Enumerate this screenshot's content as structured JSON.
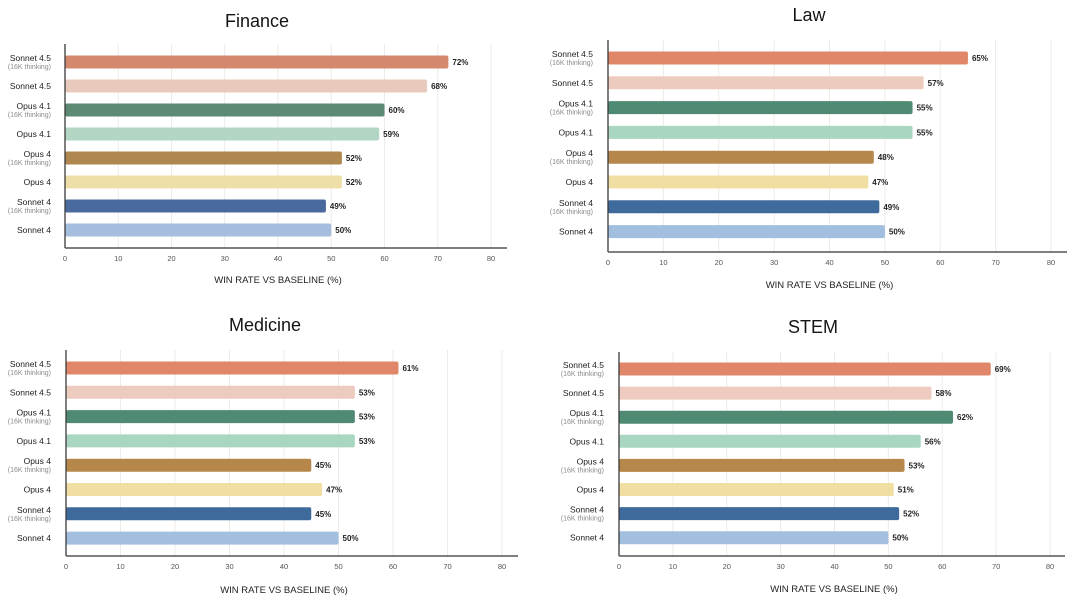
{
  "chart_data": [
    {
      "type": "bar",
      "orientation": "horizontal",
      "title": "Finance",
      "xlabel": "WIN RATE VS BASELINE (%)",
      "ylabel": "",
      "xlim": [
        0,
        80
      ],
      "xticks": [
        "0",
        "10",
        "20",
        "30",
        "40",
        "50",
        "60",
        "70",
        "80"
      ],
      "grid": true,
      "categories": [
        {
          "name": "Sonnet 4.5",
          "sub": "(16K thinking)"
        },
        {
          "name": "Sonnet 4.5",
          "sub": ""
        },
        {
          "name": "Opus 4.1",
          "sub": "(16K thinking)"
        },
        {
          "name": "Opus 4.1",
          "sub": ""
        },
        {
          "name": "Opus 4",
          "sub": "(16K thinking)"
        },
        {
          "name": "Opus 4",
          "sub": ""
        },
        {
          "name": "Sonnet 4",
          "sub": "(16K thinking)"
        },
        {
          "name": "Sonnet 4",
          "sub": ""
        }
      ],
      "values": [
        72,
        68,
        60,
        59,
        52,
        52,
        49,
        50
      ],
      "value_labels": [
        "72%",
        "68%",
        "60%",
        "59%",
        "52%",
        "52%",
        "49%",
        "50%"
      ],
      "colors": [
        "#D4896E",
        "#E8CABD",
        "#5C8A74",
        "#B3D6C4",
        "#B0874F",
        "#EEDFA9",
        "#4A6A9E",
        "#A6BEDD"
      ]
    },
    {
      "type": "bar",
      "orientation": "horizontal",
      "title": "Law",
      "xlabel": "WIN RATE VS BASELINE (%)",
      "ylabel": "",
      "xlim": [
        0,
        80
      ],
      "xticks": [
        "0",
        "10",
        "20",
        "30",
        "40",
        "50",
        "60",
        "70",
        "80"
      ],
      "grid": true,
      "categories": [
        {
          "name": "Sonnet 4.5",
          "sub": "(16K thinking)"
        },
        {
          "name": "Sonnet 4.5",
          "sub": ""
        },
        {
          "name": "Opus 4.1",
          "sub": "(16K thinking)"
        },
        {
          "name": "Opus 4.1",
          "sub": ""
        },
        {
          "name": "Opus 4",
          "sub": "(16K thinking)"
        },
        {
          "name": "Opus 4",
          "sub": ""
        },
        {
          "name": "Sonnet 4",
          "sub": "(16K thinking)"
        },
        {
          "name": "Sonnet 4",
          "sub": ""
        }
      ],
      "values": [
        65,
        57,
        55,
        55,
        48,
        47,
        49,
        50
      ],
      "value_labels": [
        "65%",
        "57%",
        "55%",
        "55%",
        "48%",
        "47%",
        "49%",
        "50%"
      ],
      "colors": [
        "#E0876A",
        "#EDCBBE",
        "#4F8A72",
        "#A8D6C1",
        "#B5874A",
        "#F1DEA2",
        "#3F6A9C",
        "#A2BFE0"
      ]
    },
    {
      "type": "bar",
      "orientation": "horizontal",
      "title": "Medicine",
      "xlabel": "WIN RATE VS BASELINE (%)",
      "ylabel": "",
      "xlim": [
        0,
        80
      ],
      "xticks": [
        "0",
        "10",
        "20",
        "30",
        "40",
        "50",
        "60",
        "70",
        "80"
      ],
      "grid": true,
      "categories": [
        {
          "name": "Sonnet 4.5",
          "sub": "(16K thinking)"
        },
        {
          "name": "Sonnet 4.5",
          "sub": ""
        },
        {
          "name": "Opus 4.1",
          "sub": "(16K thinking)"
        },
        {
          "name": "Opus 4.1",
          "sub": ""
        },
        {
          "name": "Opus 4",
          "sub": "(16K thinking)"
        },
        {
          "name": "Opus 4",
          "sub": ""
        },
        {
          "name": "Sonnet 4",
          "sub": "(16K thinking)"
        },
        {
          "name": "Sonnet 4",
          "sub": ""
        }
      ],
      "values": [
        61,
        53,
        53,
        53,
        45,
        47,
        45,
        50
      ],
      "value_labels": [
        "61%",
        "53%",
        "53%",
        "53%",
        "45%",
        "47%",
        "45%",
        "50%"
      ],
      "colors": [
        "#E0876A",
        "#EDCBBE",
        "#4F8A72",
        "#A8D6C1",
        "#B5874A",
        "#F1DEA2",
        "#3F6A9C",
        "#A2BFE0"
      ]
    },
    {
      "type": "bar",
      "orientation": "horizontal",
      "title": "STEM",
      "xlabel": "WIN RATE VS BASELINE (%)",
      "ylabel": "",
      "xlim": [
        0,
        80
      ],
      "xticks": [
        "0",
        "10",
        "20",
        "30",
        "40",
        "50",
        "60",
        "70",
        "80"
      ],
      "grid": true,
      "categories": [
        {
          "name": "Sonnet 4.5",
          "sub": "(16K thinking)"
        },
        {
          "name": "Sonnet 4.5",
          "sub": ""
        },
        {
          "name": "Opus 4.1",
          "sub": "(16K thinking)"
        },
        {
          "name": "Opus 4.1",
          "sub": ""
        },
        {
          "name": "Opus 4",
          "sub": "(16K thinking)"
        },
        {
          "name": "Opus 4",
          "sub": ""
        },
        {
          "name": "Sonnet 4",
          "sub": "(16K thinking)"
        },
        {
          "name": "Sonnet 4",
          "sub": ""
        }
      ],
      "values": [
        69,
        58,
        62,
        56,
        53,
        51,
        52,
        50
      ],
      "value_labels": [
        "69%",
        "58%",
        "62%",
        "56%",
        "53%",
        "51%",
        "52%",
        "50%"
      ],
      "colors": [
        "#E0876A",
        "#EDCBBE",
        "#4F8A72",
        "#A8D6C1",
        "#B5874A",
        "#F1DEA2",
        "#3F6A9C",
        "#A2BFE0"
      ]
    }
  ]
}
